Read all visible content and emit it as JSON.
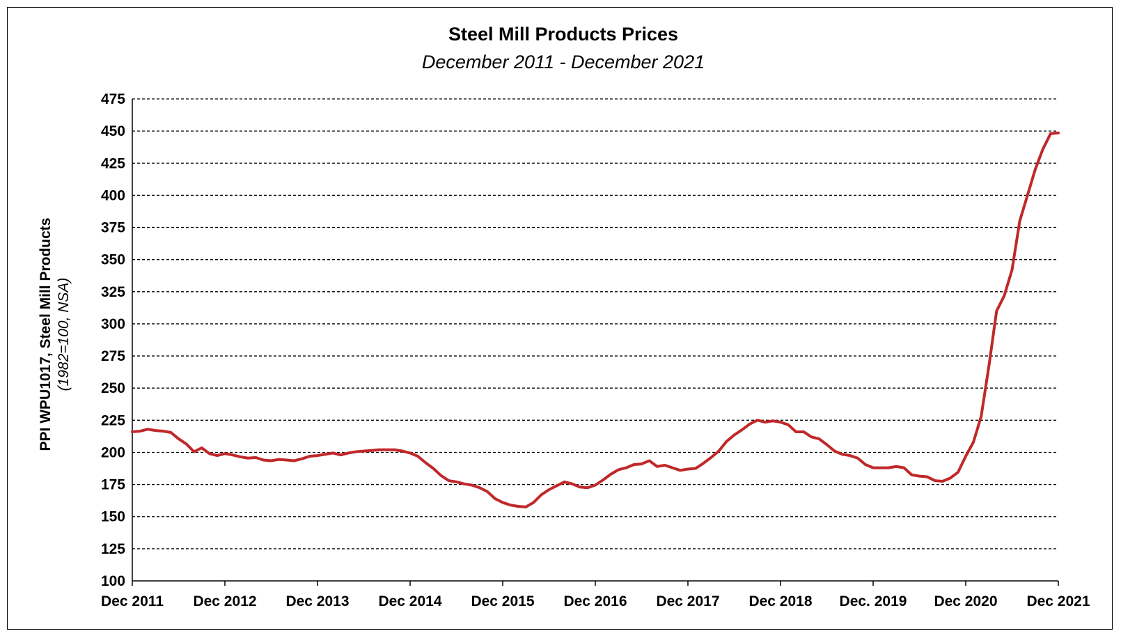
{
  "chart_data": {
    "type": "line",
    "title": "Steel Mill Products Prices",
    "subtitle": "December 2011 - December 2021",
    "ylabel": "PPI WPU1017, Steel Mill Products",
    "ylabel_note": "(1982=100, NSA)",
    "xlabel": "",
    "ylim": [
      100,
      475
    ],
    "yticks": [
      100,
      125,
      150,
      175,
      200,
      225,
      250,
      275,
      300,
      325,
      350,
      375,
      400,
      425,
      450,
      475
    ],
    "xticks": [
      "Dec 2011",
      "Dec 2012",
      "Dec 2013",
      "Dec 2014",
      "Dec 2015",
      "Dec 2016",
      "Dec 2017",
      "Dec 2018",
      "Dec. 2019",
      "Dec 2020",
      "Dec 2021"
    ],
    "grid": "horizontal-dashed",
    "line_color": "#c0282a",
    "series": [
      {
        "values": [
          216,
          216.5,
          218,
          217,
          216.5,
          215.5,
          210.5,
          206.5,
          200.5,
          203.5,
          199,
          197.5,
          199,
          198,
          196.5,
          195.5,
          196,
          194,
          193.5,
          194.5,
          194,
          193.5,
          195,
          197,
          197.5,
          198.5,
          199.5,
          198,
          199.5,
          200.5,
          201,
          201.5,
          202,
          202,
          202,
          201,
          199.5,
          197,
          192,
          187.5,
          182,
          178,
          177,
          175.5,
          174.5,
          172.5,
          169.5,
          164,
          161,
          159,
          158,
          157.5,
          161,
          167,
          171,
          174,
          177,
          175.5,
          173,
          172.5,
          174.5,
          178.5,
          183,
          186.5,
          188,
          190.5,
          191,
          193.5,
          189,
          190,
          188,
          186,
          187,
          187.5,
          191.5,
          196,
          201,
          208.5,
          213.5,
          217.5,
          222,
          225,
          223.5,
          224.5,
          223.5,
          221.5,
          216,
          216,
          212,
          210.5,
          206,
          201,
          198.5,
          197.5,
          195.5,
          190.5,
          188,
          188,
          188,
          189,
          188,
          182.5,
          181.5,
          181,
          178,
          177.5,
          180,
          184.5,
          197,
          208,
          228,
          267,
          310,
          322,
          342,
          380,
          400,
          420,
          436,
          448,
          448.5
        ]
      }
    ]
  }
}
